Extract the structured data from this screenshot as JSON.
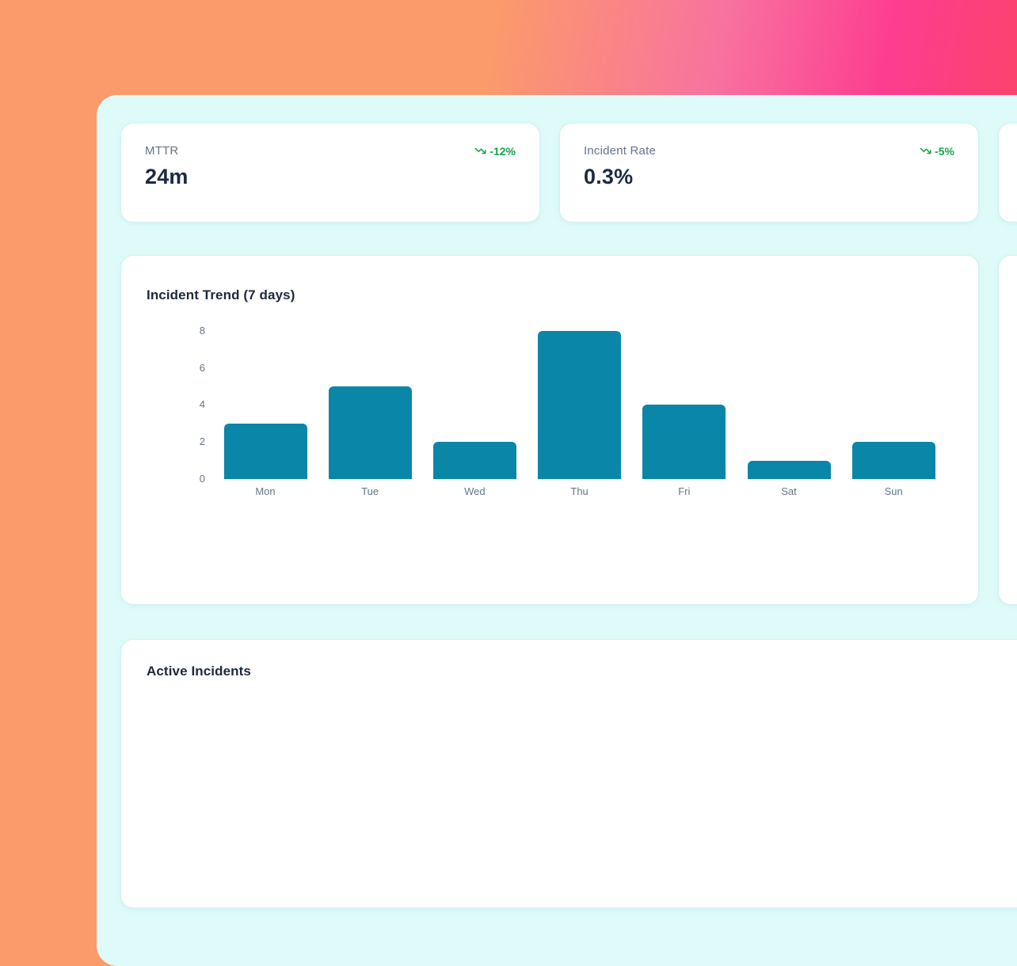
{
  "kpi_cards": [
    {
      "label": "MTTR",
      "value": "24m",
      "trend": "-12%"
    },
    {
      "label": "Incident Rate",
      "value": "0.3%",
      "trend": "-5%"
    },
    {
      "label": "",
      "value": "",
      "trend": ""
    }
  ],
  "chart_card": {
    "title": "Incident Trend (7 days)"
  },
  "second_chart_card": {
    "title": ""
  },
  "active_incidents": {
    "title": "Active Incidents"
  },
  "chart_data": {
    "type": "bar",
    "categories": [
      "Mon",
      "Tue",
      "Wed",
      "Thu",
      "Fri",
      "Sat",
      "Sun"
    ],
    "values": [
      3,
      5,
      2,
      8,
      4,
      1,
      2
    ],
    "title": "Incident Trend (7 days)",
    "xlabel": "",
    "ylabel": "",
    "ylim": [
      0,
      8
    ],
    "yticks": [
      0,
      2,
      4,
      6,
      8
    ],
    "grid": false,
    "legend": false,
    "bar_color": "#0a86a8"
  },
  "colors": {
    "background_orange": "#fb9a6b",
    "background_pink": "#fd3d90",
    "background_red": "#fb4752",
    "panel_mint": "#dffbf9",
    "card_white": "#ffffff",
    "trend_green": "#17a34a",
    "label_gray": "#64748b",
    "value_dark": "#1b2a41",
    "bar_teal": "#0a86a8"
  }
}
